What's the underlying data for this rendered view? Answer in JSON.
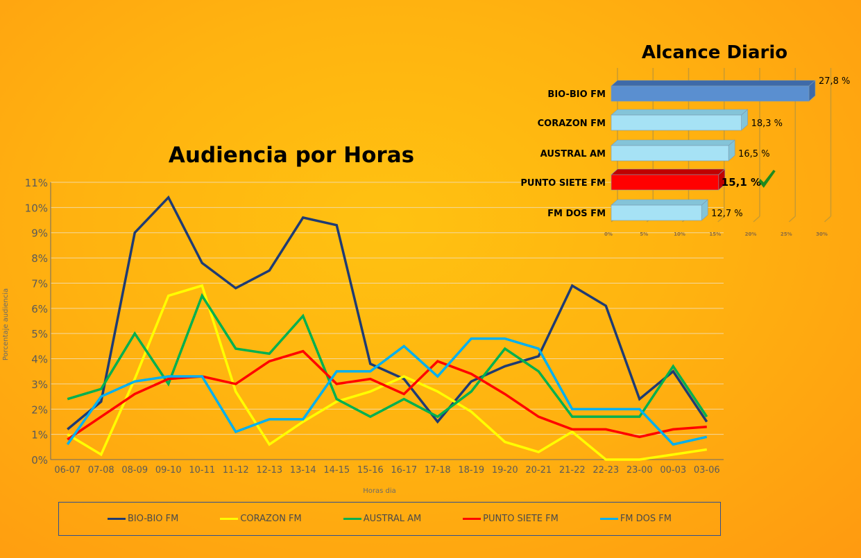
{
  "chart_data": [
    {
      "type": "line",
      "title": "Audiencia por Horas",
      "xlabel": "Horas dia",
      "ylabel": "Porcentaje audiencia",
      "ylim": [
        0,
        11
      ],
      "yticks": [
        "0%",
        "1%",
        "2%",
        "3%",
        "4%",
        "5%",
        "6%",
        "7%",
        "8%",
        "9%",
        "10%",
        "11%"
      ],
      "grid": true,
      "legend": "bottom",
      "categories": [
        "06-07",
        "07-08",
        "08-09",
        "09-10",
        "10-11",
        "11-12",
        "12-13",
        "13-14",
        "14-15",
        "15-16",
        "16-17",
        "17-18",
        "18-19",
        "19-20",
        "20-21",
        "21-22",
        "22-23",
        "23-00",
        "00-03",
        "03-06"
      ],
      "series": [
        {
          "name": "BIO-BIO FM",
          "color": "#1f3b73",
          "values": [
            1.2,
            2.3,
            9.0,
            10.4,
            7.8,
            6.8,
            7.5,
            9.6,
            9.3,
            3.8,
            3.2,
            1.5,
            3.1,
            3.7,
            4.1,
            6.9,
            6.1,
            2.4,
            3.5,
            1.5
          ]
        },
        {
          "name": "CORAZON FM",
          "color": "#ffff00",
          "values": [
            1.0,
            0.2,
            3.2,
            6.5,
            6.9,
            2.7,
            0.6,
            1.5,
            2.3,
            2.7,
            3.3,
            2.7,
            1.9,
            0.7,
            0.3,
            1.1,
            0.0,
            0.0,
            0.2,
            0.4
          ]
        },
        {
          "name": "AUSTRAL AM",
          "color": "#00b050",
          "values": [
            2.4,
            2.8,
            5.0,
            3.0,
            6.5,
            4.4,
            4.2,
            5.7,
            2.4,
            1.7,
            2.4,
            1.7,
            2.7,
            4.4,
            3.5,
            1.7,
            1.7,
            1.7,
            3.7,
            1.7
          ]
        },
        {
          "name": "PUNTO SIETE FM",
          "color": "#ff0000",
          "values": [
            0.8,
            1.7,
            2.6,
            3.2,
            3.3,
            3.0,
            3.9,
            4.3,
            3.0,
            3.2,
            2.6,
            3.9,
            3.4,
            2.6,
            1.7,
            1.2,
            1.2,
            0.9,
            1.2,
            1.3
          ]
        },
        {
          "name": "FM DOS FM",
          "color": "#00b0f0",
          "values": [
            0.6,
            2.5,
            3.1,
            3.3,
            3.3,
            1.1,
            1.6,
            1.6,
            3.5,
            3.5,
            4.5,
            3.3,
            4.8,
            4.8,
            4.4,
            2.0,
            2.0,
            2.0,
            0.6,
            0.9
          ]
        }
      ]
    },
    {
      "type": "bar",
      "orientation": "horizontal",
      "style": "3d",
      "title": "Alcance Diario",
      "xlim": [
        0,
        30
      ],
      "xticks": [
        "0%",
        "5%",
        "10%",
        "15%",
        "20%",
        "25%",
        "30%"
      ],
      "categories": [
        "BIO-BIO FM",
        "CORAZON FM",
        "AUSTRAL AM",
        "PUNTO SIETE FM",
        "FM DOS FM"
      ],
      "values": [
        27.8,
        18.3,
        16.5,
        15.1,
        12.7
      ],
      "labels": [
        "27,8 %",
        "18,3 %",
        "16,5 %",
        "15,1 %",
        "12,7 %"
      ],
      "colors": [
        "#5a8fd0",
        "#a6e2f5",
        "#a6e2f5",
        "#ff0000",
        "#a6e2f5"
      ],
      "highlight": {
        "category": "PUNTO SIETE FM",
        "icon": "checkmark-icon",
        "color": "#1f8a1f"
      }
    }
  ]
}
